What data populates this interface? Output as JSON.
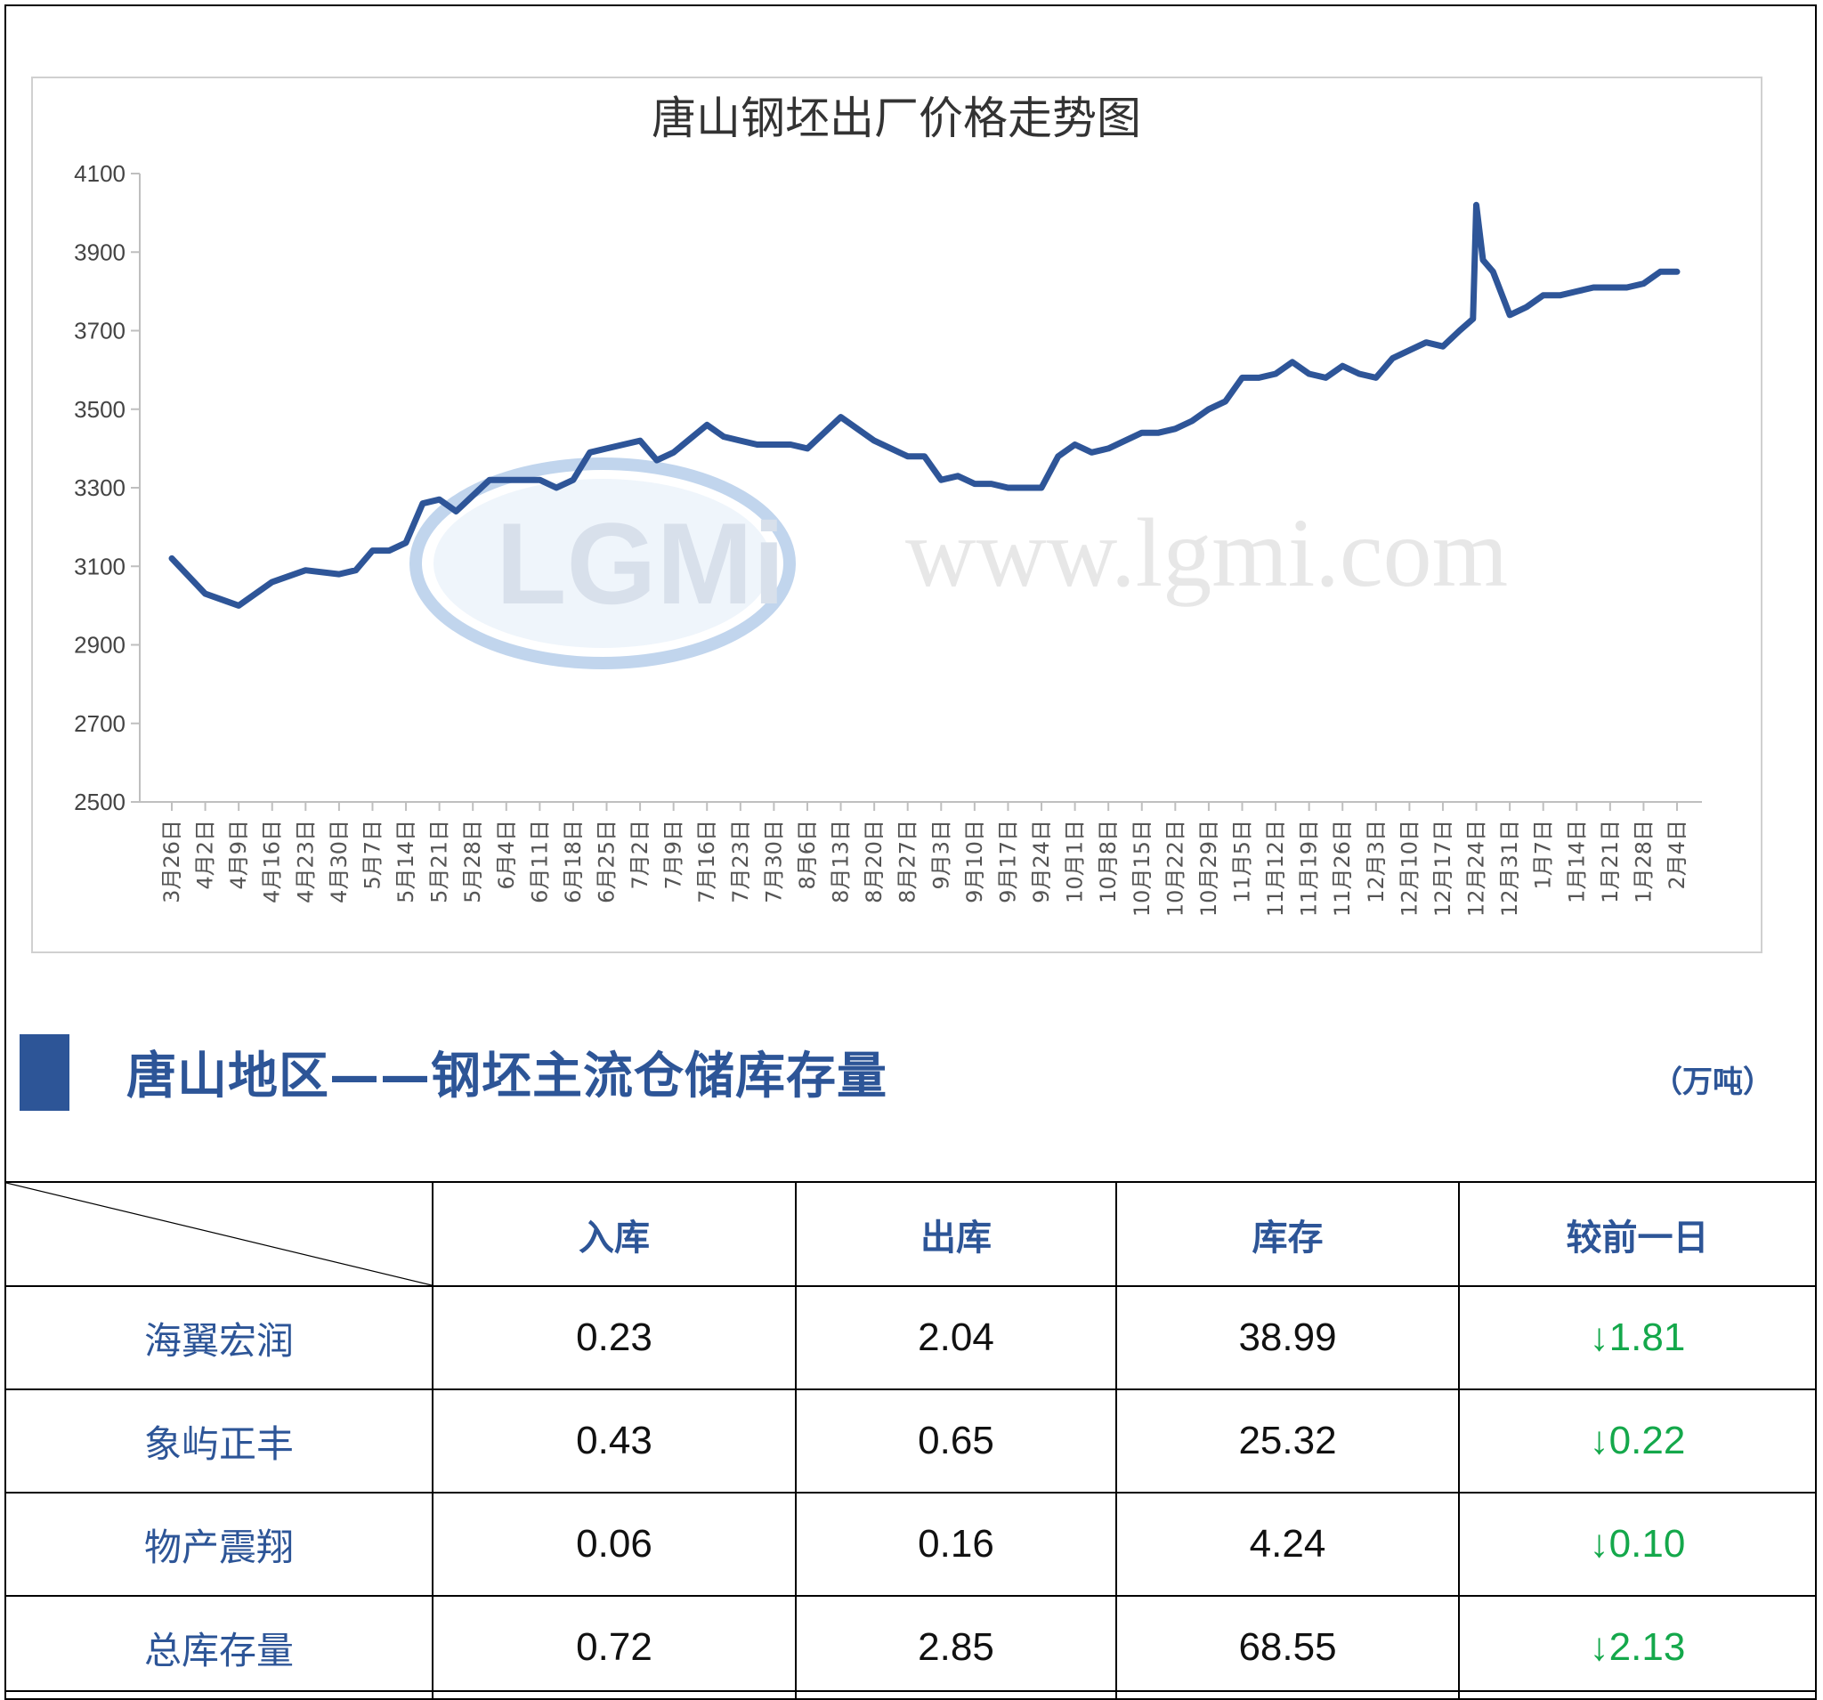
{
  "chart_data": {
    "type": "line",
    "title": "唐山钢坯出厂价格走势图",
    "watermark": "www.lgmi.com",
    "watermark_logo": "LGMi",
    "ylim": [
      2500,
      4100
    ],
    "yticks": [
      2500,
      2700,
      2900,
      3100,
      3300,
      3500,
      3700,
      3900,
      4100
    ],
    "categories": [
      "3月26日",
      "4月2日",
      "4月9日",
      "4月16日",
      "4月23日",
      "4月30日",
      "5月7日",
      "5月14日",
      "5月21日",
      "5月28日",
      "6月4日",
      "6月11日",
      "6月18日",
      "6月25日",
      "7月2日",
      "7月9日",
      "7月16日",
      "7月23日",
      "7月30日",
      "8月6日",
      "8月13日",
      "8月20日",
      "8月27日",
      "9月3日",
      "9月10日",
      "9月17日",
      "9月24日",
      "10月1日",
      "10月8日",
      "10月15日",
      "10月22日",
      "10月29日",
      "11月5日",
      "11月12日",
      "11月19日",
      "11月26日",
      "12月3日",
      "12月10日",
      "12月17日",
      "12月24日",
      "12月31日",
      "1月7日",
      "1月14日",
      "1月21日",
      "1月28日",
      "2月4日"
    ],
    "x": [
      0,
      1,
      2,
      3,
      4,
      5,
      5.5,
      6,
      6.5,
      7,
      7.5,
      8,
      8.5,
      9,
      9.5,
      10,
      10.5,
      11,
      11.5,
      12,
      12.5,
      13,
      13.5,
      14,
      14.5,
      15,
      16,
      16.5,
      17,
      17.5,
      18,
      18.5,
      19,
      20,
      21,
      22,
      22.5,
      23,
      23.5,
      24,
      24.5,
      25,
      25.5,
      26,
      26.5,
      27,
      27.5,
      28,
      28.5,
      29,
      29.5,
      30,
      30.5,
      31,
      31.5,
      32,
      32.5,
      33,
      33.5,
      34,
      34.5,
      35,
      35.5,
      36,
      36.5,
      37,
      37.5,
      38,
      38.5,
      38.9,
      39,
      39.2,
      39.5,
      40,
      40.5,
      41,
      41.5,
      42,
      42.5,
      43,
      43.5,
      44,
      44.5,
      45
    ],
    "series": [
      {
        "color": "#2e5598",
        "values": [
          3120,
          3030,
          3000,
          3060,
          3090,
          3080,
          3090,
          3140,
          3140,
          3160,
          3260,
          3270,
          3240,
          3280,
          3320,
          3320,
          3320,
          3320,
          3300,
          3320,
          3390,
          3400,
          3410,
          3420,
          3370,
          3390,
          3460,
          3430,
          3420,
          3410,
          3410,
          3410,
          3400,
          3480,
          3420,
          3380,
          3380,
          3320,
          3330,
          3310,
          3310,
          3300,
          3300,
          3300,
          3380,
          3410,
          3390,
          3400,
          3420,
          3440,
          3440,
          3450,
          3470,
          3500,
          3520,
          3580,
          3580,
          3590,
          3620,
          3590,
          3580,
          3610,
          3590,
          3580,
          3630,
          3650,
          3670,
          3660,
          3700,
          3730,
          4020,
          3880,
          3850,
          3740,
          3760,
          3790,
          3790,
          3800,
          3810,
          3810,
          3810,
          3820,
          3850,
          3850
        ]
      }
    ]
  },
  "section": {
    "title": "唐山地区——钢坯主流仓储库存量",
    "unit": "（万吨）"
  },
  "table": {
    "headers": [
      "入库",
      "出库",
      "库存",
      "较前一日"
    ],
    "rows": [
      {
        "name": "海翼宏润",
        "in": "0.23",
        "out": "2.04",
        "stock": "38.99",
        "change": "↓1.81"
      },
      {
        "name": "象屿正丰",
        "in": "0.43",
        "out": "0.65",
        "stock": "25.32",
        "change": "↓0.22"
      },
      {
        "name": "物产震翔",
        "in": "0.06",
        "out": "0.16",
        "stock": "4.24",
        "change": "↓0.10"
      },
      {
        "name": "总库存量",
        "in": "0.72",
        "out": "2.85",
        "stock": "68.55",
        "change": "↓2.13"
      }
    ]
  }
}
